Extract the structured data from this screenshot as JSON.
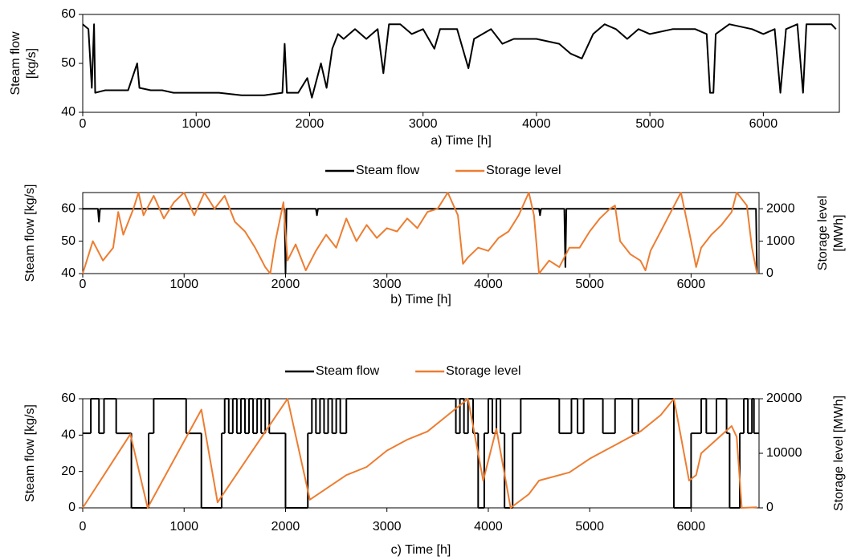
{
  "chart_data": [
    {
      "type": "line",
      "x_label": "a) Time [h]",
      "y_label": [
        "Steam flow",
        "[kg/s]"
      ],
      "xlim": [
        0,
        6670
      ],
      "xticks": [
        0,
        1000,
        2000,
        3000,
        4000,
        5000,
        6000
      ],
      "ylim": [
        40,
        60
      ],
      "yticks": [
        40,
        50,
        60
      ],
      "series": [
        {
          "color": "#000000",
          "x": [
            0,
            50,
            80,
            100,
            110,
            200,
            400,
            480,
            500,
            600,
            700,
            800,
            1000,
            1200,
            1400,
            1600,
            1760,
            1780,
            1800,
            1900,
            1980,
            2020,
            2100,
            2150,
            2200,
            2250,
            2300,
            2400,
            2500,
            2550,
            2600,
            2650,
            2700,
            2800,
            2900,
            3000,
            3100,
            3150,
            3300,
            3400,
            3450,
            3600,
            3700,
            3800,
            4000,
            4200,
            4300,
            4400,
            4500,
            4600,
            4700,
            4800,
            4900,
            5000,
            5200,
            5400,
            5500,
            5530,
            5560,
            5580,
            5700,
            5900,
            6000,
            6100,
            6150,
            6200,
            6300,
            6350,
            6380,
            6500,
            6600,
            6640
          ],
          "values": [
            58,
            57,
            45,
            58,
            44,
            44.5,
            44.5,
            50,
            45,
            44.5,
            44.5,
            44,
            44,
            44,
            43.5,
            43.5,
            44,
            54,
            44,
            44,
            47,
            43,
            50,
            45,
            53,
            56,
            55,
            57,
            55,
            56,
            57,
            48,
            58,
            58,
            56,
            57,
            53,
            57,
            57,
            49,
            55,
            57,
            54,
            55,
            55,
            54,
            52,
            51,
            56,
            58,
            57,
            55,
            57,
            56,
            57,
            57,
            56,
            44,
            44,
            56,
            58,
            57,
            56,
            57,
            44,
            57,
            58,
            44,
            58,
            58,
            58,
            57
          ]
        }
      ]
    },
    {
      "type": "line",
      "x_label": "b) Time [h]",
      "y_label": [
        "Steam flow [kg/s]"
      ],
      "y2_label": [
        "Storage level",
        "[MWh]"
      ],
      "legend": "top",
      "xlim": [
        0,
        6670
      ],
      "xticks": [
        0,
        1000,
        2000,
        3000,
        4000,
        5000,
        6000
      ],
      "ylim": [
        40,
        65
      ],
      "yticks": [
        40,
        50,
        60
      ],
      "y2lim": [
        0,
        2500
      ],
      "y2ticks": [
        0,
        1000,
        2000
      ],
      "series": [
        {
          "name": "Steam flow",
          "color": "#000000",
          "x": [
            0,
            150,
            160,
            170,
            1990,
            2000,
            2010,
            2300,
            2310,
            2320,
            4500,
            4510,
            4520,
            4750,
            4760,
            4770,
            6640,
            6650
          ],
          "values": [
            60,
            60,
            56,
            60,
            60,
            40,
            60,
            60,
            58,
            60,
            60,
            58,
            60,
            60,
            42,
            60,
            60,
            40
          ]
        },
        {
          "name": "Storage level",
          "color": "#ED7D31",
          "axis": "y2",
          "x": [
            0,
            50,
            100,
            200,
            300,
            350,
            400,
            500,
            550,
            600,
            700,
            800,
            900,
            1000,
            1100,
            1200,
            1300,
            1400,
            1500,
            1600,
            1700,
            1800,
            1850,
            1900,
            1980,
            2020,
            2100,
            2200,
            2300,
            2400,
            2500,
            2600,
            2700,
            2800,
            2900,
            3000,
            3100,
            3200,
            3300,
            3400,
            3500,
            3600,
            3700,
            3750,
            3800,
            3900,
            4000,
            4100,
            4200,
            4300,
            4400,
            4450,
            4500,
            4600,
            4700,
            4800,
            4900,
            5000,
            5100,
            5200,
            5250,
            5300,
            5400,
            5500,
            5550,
            5600,
            5700,
            5800,
            5900,
            6000,
            6050,
            6100,
            6200,
            6300,
            6400,
            6450,
            6550,
            6600,
            6650
          ],
          "values": [
            0,
            500,
            1000,
            400,
            800,
            1900,
            1200,
            2000,
            2500,
            1800,
            2400,
            1700,
            2200,
            2500,
            1800,
            2500,
            2000,
            2400,
            1600,
            1300,
            800,
            200,
            0,
            1000,
            2200,
            400,
            900,
            100,
            700,
            1200,
            800,
            1700,
            1000,
            1500,
            1100,
            1400,
            1300,
            1700,
            1400,
            1900,
            2000,
            2500,
            1800,
            300,
            500,
            800,
            700,
            1100,
            1300,
            1800,
            2500,
            1800,
            0,
            400,
            200,
            800,
            800,
            1300,
            1700,
            2000,
            2100,
            1000,
            600,
            400,
            100,
            700,
            1300,
            1900,
            2500,
            1000,
            200,
            800,
            1200,
            1500,
            1900,
            2500,
            2100,
            800,
            0
          ]
        }
      ]
    },
    {
      "type": "line",
      "x_label": "c) Time [h]",
      "y_label": [
        "Steam flow [kg/s]"
      ],
      "y2_label": [
        "Storage level [MWh]"
      ],
      "legend": "top",
      "xlim": [
        0,
        6670
      ],
      "xticks": [
        0,
        1000,
        2000,
        3000,
        4000,
        5000,
        6000
      ],
      "ylim": [
        0,
        60
      ],
      "yticks": [
        0,
        20,
        40,
        60
      ],
      "y2lim": [
        0,
        20000
      ],
      "y2ticks": [
        0,
        10000,
        20000
      ],
      "series": [
        {
          "name": "Steam flow",
          "color": "#000000",
          "step": true,
          "x": [
            0,
            80,
            160,
            210,
            330,
            480,
            650,
            700,
            1020,
            1170,
            1370,
            1400,
            1440,
            1480,
            1520,
            1560,
            1600,
            1640,
            1680,
            1720,
            1760,
            1800,
            1840,
            2000,
            2220,
            2260,
            2300,
            2340,
            2380,
            2420,
            2460,
            2500,
            2540,
            2600,
            3680,
            3720,
            3760,
            3800,
            3850,
            3900,
            3960,
            4000,
            4040,
            4080,
            4120,
            4160,
            4240,
            4320,
            4700,
            4820,
            4880,
            4940,
            5130,
            5250,
            5420,
            5480,
            5830,
            6000,
            6100,
            6150,
            6250,
            6350,
            6380,
            6480,
            6520,
            6560,
            6600,
            6620
          ],
          "values": [
            41,
            60,
            41,
            60,
            41,
            0,
            41,
            60,
            41,
            0,
            41,
            60,
            41,
            60,
            41,
            60,
            41,
            60,
            41,
            60,
            41,
            60,
            41,
            0,
            41,
            60,
            41,
            60,
            41,
            60,
            41,
            60,
            41,
            60,
            41,
            60,
            41,
            60,
            41,
            0,
            41,
            60,
            41,
            60,
            41,
            0,
            41,
            60,
            41,
            60,
            41,
            60,
            41,
            60,
            41,
            60,
            0,
            41,
            60,
            41,
            60,
            41,
            0,
            41,
            60,
            41,
            60,
            41
          ]
        },
        {
          "name": "Storage level",
          "color": "#ED7D31",
          "axis": "y2",
          "x": [
            0,
            470,
            640,
            1170,
            1330,
            2020,
            2240,
            2400,
            2600,
            2800,
            3000,
            3200,
            3400,
            3600,
            3800,
            3950,
            4080,
            4220,
            4400,
            4500,
            4800,
            5000,
            5300,
            5500,
            5700,
            5830,
            5980,
            6050,
            6100,
            6400,
            6450,
            6500,
            6650
          ],
          "values": [
            0,
            13500,
            0,
            18000,
            1000,
            20000,
            1500,
            3500,
            6000,
            7500,
            10500,
            12500,
            14000,
            17000,
            20000,
            5000,
            14500,
            0,
            2500,
            5000,
            6500,
            9000,
            12000,
            14000,
            17000,
            20000,
            5000,
            6000,
            10000,
            15000,
            13000,
            0,
            100
          ]
        }
      ]
    }
  ]
}
